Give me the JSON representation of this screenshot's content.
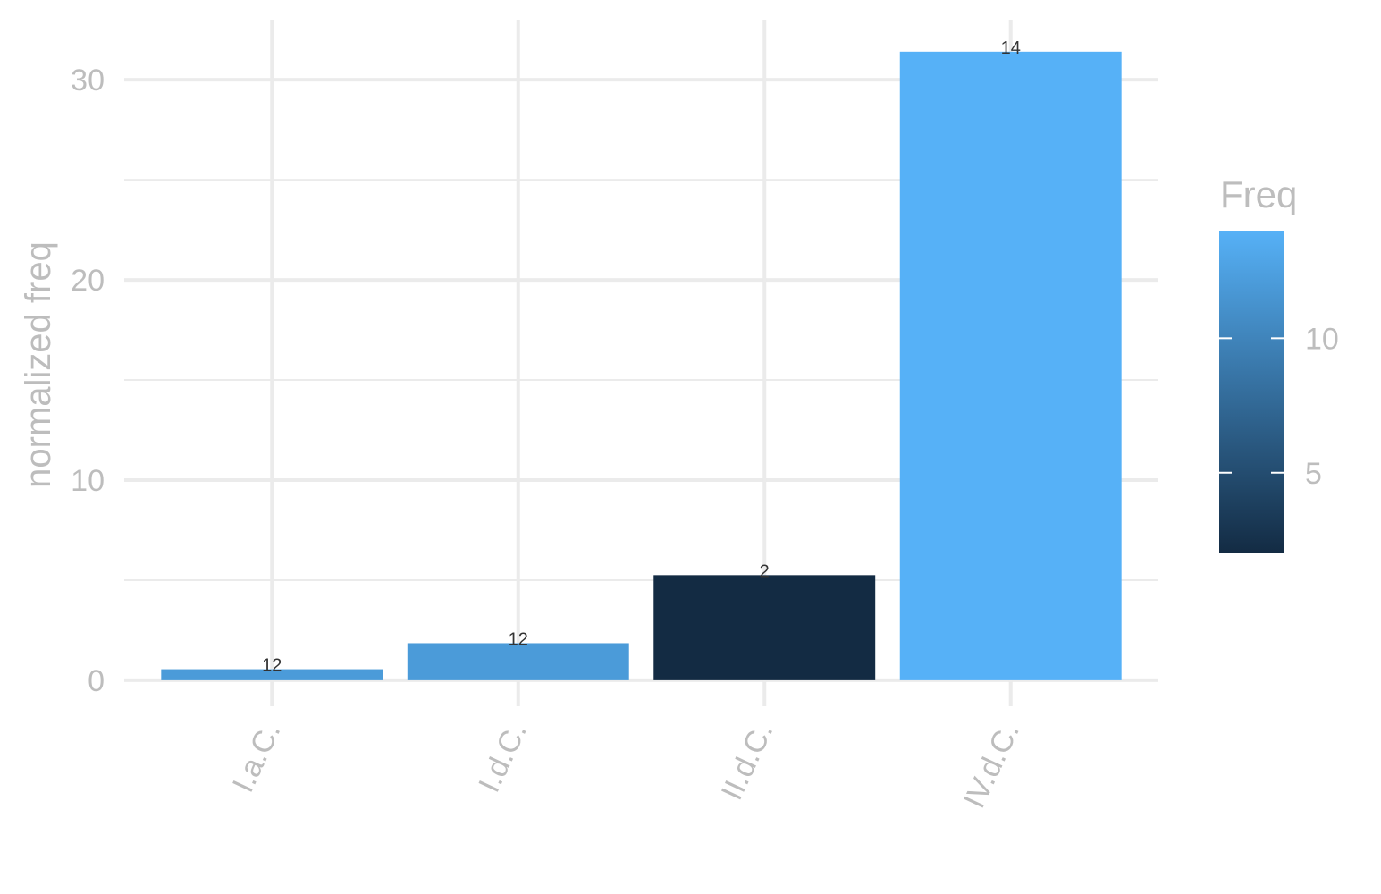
{
  "chart_data": {
    "type": "bar",
    "categories": [
      "I.a.C.",
      "I.d.C.",
      "II.d.C.",
      "IV.d.C."
    ],
    "values": [
      0.55,
      1.85,
      5.25,
      31.4
    ],
    "fill_freq": [
      12,
      12,
      2,
      14
    ],
    "bar_labels": [
      "12",
      "12",
      "2",
      "14"
    ],
    "xlabel": "",
    "ylabel": "normalized freq",
    "ylim": [
      -1.3,
      33
    ],
    "yticks": [
      0,
      10,
      20,
      30
    ],
    "ytick_labels": [
      "0",
      "10",
      "20",
      "30"
    ],
    "grid": true,
    "legend": {
      "title": "Freq",
      "type": "colorbar",
      "position": "right",
      "range": [
        2,
        14
      ],
      "ticks": [
        5,
        10
      ],
      "tick_labels": [
        "5",
        "10"
      ],
      "low_color": "#132B43",
      "high_color": "#56B1F7"
    }
  }
}
